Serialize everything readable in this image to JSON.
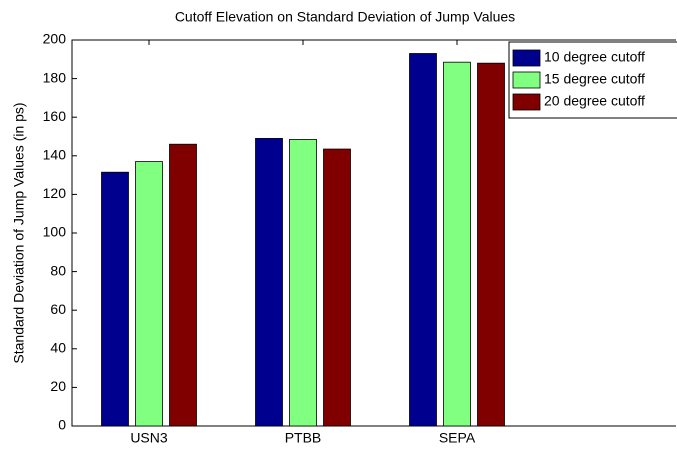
{
  "chart_data": {
    "type": "bar",
    "title": "Cutoff Elevation on Standard Deviation of Jump Values",
    "y_label": "Standard Deviation of Jump Values (in ps)",
    "categories": [
      "USN3",
      "PTBB",
      "SEPA"
    ],
    "series": [
      {
        "name": "10 degree cutoff",
        "color": "#00008f",
        "values": [
          131.5,
          149,
          193
        ]
      },
      {
        "name": "15 degree cutoff",
        "color": "#80ff80",
        "values": [
          137,
          148.5,
          188.5
        ]
      },
      {
        "name": "20 degree cutoff",
        "color": "#800000",
        "values": [
          146,
          143.5,
          188
        ]
      }
    ],
    "ylim": [
      0,
      200
    ],
    "yticks": [
      0,
      20,
      40,
      60,
      80,
      100,
      120,
      140,
      160,
      180,
      200
    ],
    "legend": "upper right"
  }
}
